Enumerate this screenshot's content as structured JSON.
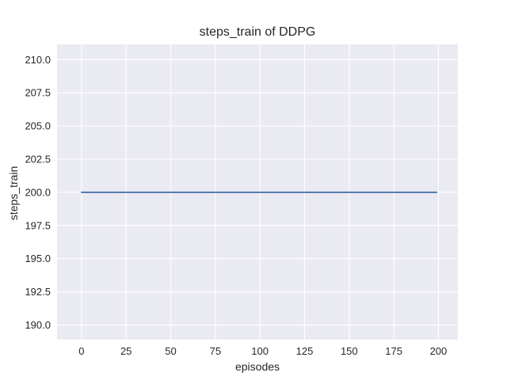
{
  "chart_data": {
    "type": "line",
    "title": "steps_train of DDPG",
    "xlabel": "episodes",
    "ylabel": "steps_train",
    "series": [
      {
        "name": "steps_train",
        "color": "#4c72b0",
        "x": [
          0,
          199
        ],
        "y": [
          200,
          200
        ],
        "note": "constant flat line at steps_train = 200 for all episodes 0 through 199"
      }
    ],
    "xlim": [
      -13.7,
      210.9
    ],
    "ylim": [
      188.9,
      211.15
    ],
    "xticks": [
      0,
      25,
      50,
      75,
      100,
      125,
      150,
      175,
      200
    ],
    "xtick_labels": [
      "0",
      "25",
      "50",
      "75",
      "100",
      "125",
      "150",
      "175",
      "200"
    ],
    "yticks": [
      190.0,
      192.5,
      195.0,
      197.5,
      200.0,
      202.5,
      205.0,
      207.5,
      210.0
    ],
    "ytick_labels": [
      "190.0",
      "192.5",
      "195.0",
      "197.5",
      "200.0",
      "202.5",
      "205.0",
      "207.5",
      "210.0"
    ],
    "grid": true,
    "legend": false,
    "style": {
      "figure_bg": "#ffffff",
      "plot_bg": "#eaeaf2",
      "grid_color": "#ffffff",
      "line_color": "#4c72b0",
      "text_color": "#262626"
    }
  }
}
